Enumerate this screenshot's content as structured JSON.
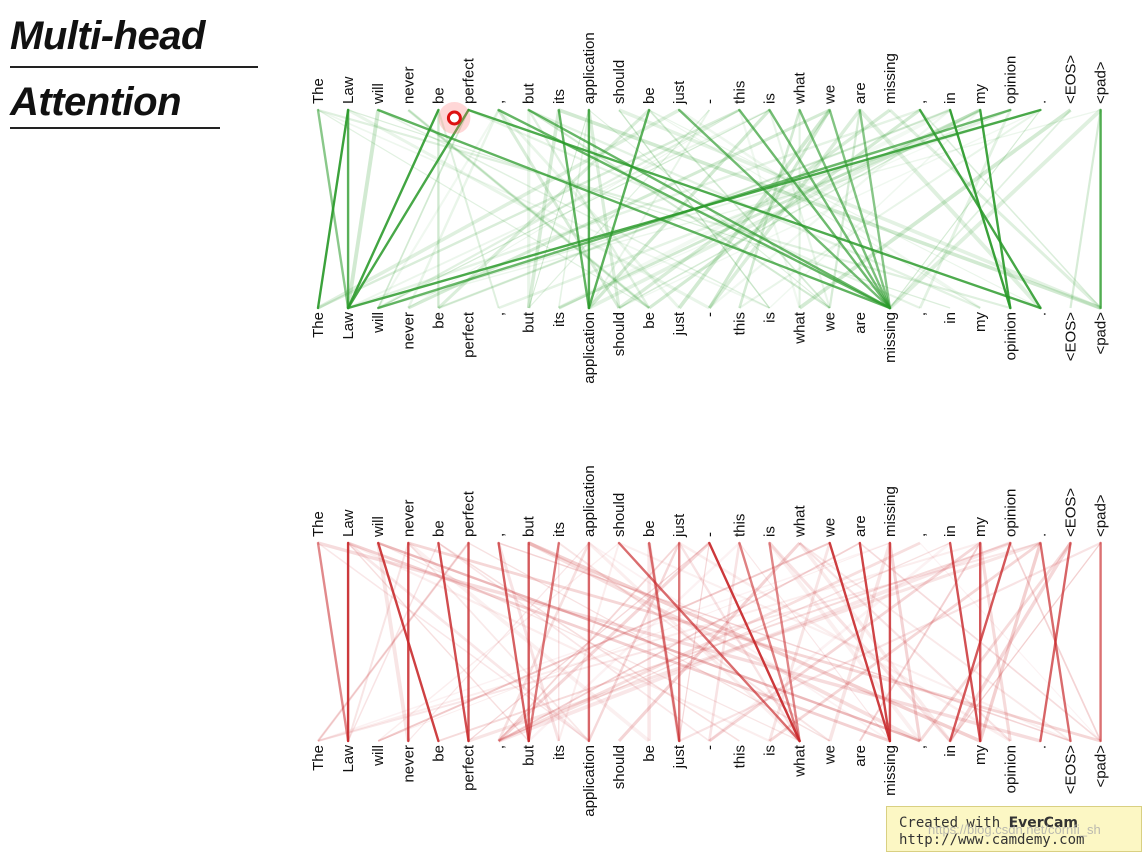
{
  "title": {
    "line1": "Multi-head",
    "line2": "Attention"
  },
  "tokens": [
    "The",
    "Law",
    "will",
    "never",
    "be",
    "perfect",
    ",",
    "but",
    "its",
    "application",
    "should",
    "be",
    "just",
    "-",
    "this",
    "is",
    "what",
    "we",
    "are",
    "missing",
    ",",
    "in",
    "my",
    "opinion",
    ".",
    "<EOS>",
    "<pad>"
  ],
  "head_green": {
    "color": "#2a9a2a",
    "strong_links": [
      [
        0,
        1
      ],
      [
        1,
        0
      ],
      [
        4,
        1
      ],
      [
        5,
        1
      ],
      [
        5,
        24
      ],
      [
        9,
        9
      ],
      [
        11,
        9
      ],
      [
        8,
        9
      ],
      [
        7,
        19
      ],
      [
        14,
        19
      ],
      [
        15,
        19
      ],
      [
        16,
        19
      ],
      [
        17,
        19
      ],
      [
        18,
        19
      ],
      [
        21,
        23
      ],
      [
        22,
        23
      ],
      [
        20,
        24
      ],
      [
        24,
        1
      ],
      [
        26,
        26
      ],
      [
        1,
        1
      ],
      [
        2,
        19
      ],
      [
        6,
        19
      ],
      [
        23,
        2
      ],
      [
        12,
        19
      ]
    ]
  },
  "head_red": {
    "color": "#c8282b",
    "strong_links": [
      [
        0,
        1
      ],
      [
        1,
        1
      ],
      [
        2,
        4
      ],
      [
        3,
        3
      ],
      [
        4,
        5
      ],
      [
        5,
        5
      ],
      [
        7,
        7
      ],
      [
        6,
        7
      ],
      [
        9,
        9
      ],
      [
        10,
        16
      ],
      [
        11,
        12
      ],
      [
        12,
        12
      ],
      [
        14,
        16
      ],
      [
        15,
        16
      ],
      [
        13,
        16
      ],
      [
        17,
        19
      ],
      [
        18,
        19
      ],
      [
        19,
        19
      ],
      [
        21,
        22
      ],
      [
        22,
        22
      ],
      [
        23,
        21
      ],
      [
        25,
        24
      ],
      [
        24,
        25
      ],
      [
        26,
        26
      ],
      [
        8,
        7
      ]
    ]
  },
  "cursor_token_index": 4,
  "watermark": {
    "line1_prefix": "Created with ",
    "line1_brand": "EverCam",
    "line2": "http://www.camdemy.com"
  },
  "csdn": "https://blog.csdn.net/cornfi_sh"
}
